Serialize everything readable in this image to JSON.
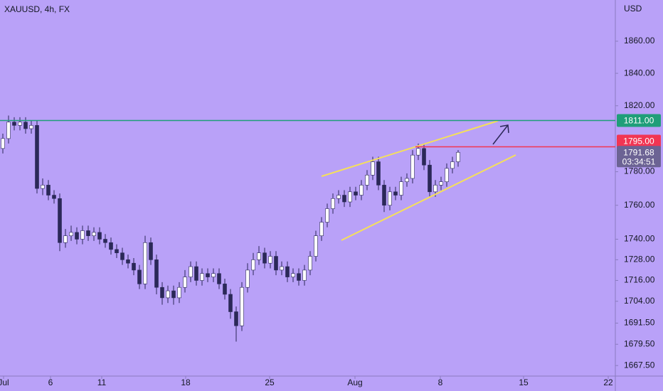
{
  "chart_data": {
    "type": "candlestick",
    "title": "XAUUSD, 4h, FX",
    "y_unit": "USD",
    "log_y": true,
    "up_color": "#ffffff",
    "down_color": "#2b2858",
    "background": "#b9a1f8",
    "open": [
      1794,
      1800,
      1810,
      1808,
      1810,
      1806,
      1808,
      1770,
      1772,
      1766,
      1764,
      1738,
      1742,
      1744,
      1740,
      1745,
      1742,
      1744,
      1740,
      1738,
      1734,
      1732,
      1728,
      1726,
      1722,
      1714,
      1738,
      1728,
      1712,
      1706,
      1710,
      1706,
      1712,
      1718,
      1724,
      1716,
      1720,
      1718,
      1720,
      1714,
      1708,
      1698,
      1690,
      1712,
      1722,
      1728,
      1732,
      1726,
      1730,
      1722,
      1724,
      1718,
      1720,
      1716,
      1722,
      1730,
      1742,
      1750,
      1758,
      1764,
      1766,
      1762,
      1768,
      1766,
      1772,
      1778,
      1786,
      1772,
      1760,
      1768,
      1766,
      1774,
      1776,
      1790,
      1794,
      1784,
      1768,
      1772,
      1774,
      1782,
      1786
    ],
    "high": [
      1803,
      1814,
      1813,
      1813,
      1813,
      1811,
      1811,
      1776,
      1775,
      1769,
      1767,
      1746,
      1748,
      1747,
      1748,
      1748,
      1747,
      1747,
      1743,
      1741,
      1737,
      1735,
      1731,
      1729,
      1725,
      1742,
      1741,
      1731,
      1715,
      1713,
      1713,
      1715,
      1722,
      1727,
      1727,
      1723,
      1723,
      1723,
      1723,
      1717,
      1711,
      1701,
      1715,
      1726,
      1732,
      1736,
      1735,
      1733,
      1733,
      1727,
      1727,
      1723,
      1723,
      1725,
      1733,
      1745,
      1753,
      1761,
      1767,
      1769,
      1769,
      1771,
      1771,
      1775,
      1781,
      1789,
      1789,
      1775,
      1771,
      1771,
      1777,
      1779,
      1793,
      1797,
      1797,
      1787,
      1775,
      1777,
      1785,
      1789,
      1793
    ],
    "low": [
      1791,
      1797,
      1805,
      1805,
      1803,
      1803,
      1767,
      1766,
      1763,
      1761,
      1733,
      1735,
      1739,
      1737,
      1737,
      1739,
      1739,
      1737,
      1735,
      1731,
      1729,
      1725,
      1723,
      1719,
      1711,
      1711,
      1725,
      1708,
      1702,
      1703,
      1702,
      1703,
      1709,
      1715,
      1713,
      1713,
      1715,
      1715,
      1711,
      1705,
      1694,
      1681,
      1687,
      1709,
      1719,
      1725,
      1723,
      1723,
      1719,
      1719,
      1715,
      1715,
      1713,
      1713,
      1719,
      1727,
      1739,
      1747,
      1755,
      1761,
      1759,
      1759,
      1763,
      1763,
      1769,
      1775,
      1769,
      1756,
      1757,
      1763,
      1763,
      1771,
      1773,
      1787,
      1781,
      1765,
      1765,
      1769,
      1771,
      1779,
      1783
    ],
    "close": [
      1800,
      1810,
      1808,
      1810,
      1806,
      1808,
      1770,
      1772,
      1766,
      1764,
      1738,
      1742,
      1744,
      1740,
      1745,
      1742,
      1744,
      1740,
      1738,
      1734,
      1732,
      1728,
      1726,
      1722,
      1714,
      1738,
      1728,
      1712,
      1706,
      1710,
      1706,
      1712,
      1718,
      1724,
      1716,
      1720,
      1718,
      1720,
      1714,
      1708,
      1698,
      1690,
      1712,
      1722,
      1728,
      1732,
      1726,
      1730,
      1722,
      1724,
      1718,
      1720,
      1716,
      1722,
      1730,
      1742,
      1750,
      1758,
      1764,
      1766,
      1762,
      1768,
      1766,
      1772,
      1778,
      1786,
      1772,
      1760,
      1768,
      1766,
      1774,
      1776,
      1790,
      1794,
      1784,
      1768,
      1772,
      1774,
      1782,
      1786,
      1791.68
    ],
    "ylim": [
      1662,
      1886
    ],
    "yticks": [
      {
        "value": 1860,
        "label": "1860.00"
      },
      {
        "value": 1840,
        "label": "1840.00"
      },
      {
        "value": 1820,
        "label": "1820.00"
      },
      {
        "value": 1780,
        "label": "1780.00"
      },
      {
        "value": 1760,
        "label": "1760.00"
      },
      {
        "value": 1740,
        "label": "1740.00"
      },
      {
        "value": 1728,
        "label": "1728.00"
      },
      {
        "value": 1716,
        "label": "1716.00"
      },
      {
        "value": 1704,
        "label": "1704.00"
      },
      {
        "value": 1691.5,
        "label": "1691.50"
      },
      {
        "value": 1679.5,
        "label": "1679.50"
      },
      {
        "value": 1667.5,
        "label": "1667.50"
      }
    ],
    "xlim": [
      0,
      108.125
    ],
    "xticks": [
      {
        "value": 0.625,
        "label": "Jul"
      },
      {
        "value": 8.875,
        "label": "6"
      },
      {
        "value": 17.875,
        "label": "11"
      },
      {
        "value": 32.625,
        "label": "18"
      },
      {
        "value": 47.375,
        "label": "25"
      },
      {
        "value": 62.375,
        "label": "Aug"
      },
      {
        "value": 77.375,
        "label": "8"
      },
      {
        "value": 92,
        "label": "15"
      },
      {
        "value": 106.875,
        "label": "22"
      }
    ],
    "levels": [
      {
        "value": 1811,
        "label": "1811.00",
        "color": "#1f9e79"
      },
      {
        "value": 1795,
        "label": "1795.00",
        "color": "#f23553"
      }
    ],
    "last_price": 1791.68,
    "countdown": "03:34:51"
  }
}
